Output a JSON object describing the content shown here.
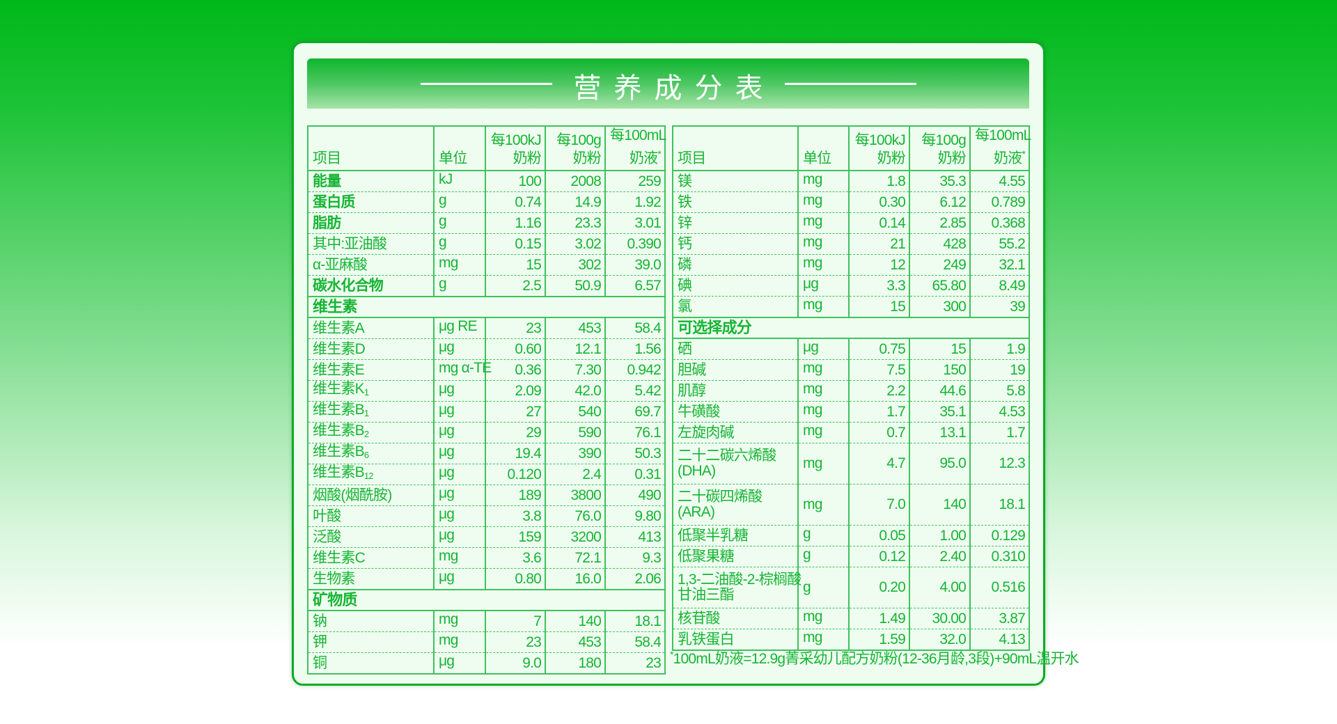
{
  "title": "营养成分表",
  "colors": {
    "accent": "#16b534",
    "border": "#3cc35a",
    "banner": "#0fb52e"
  },
  "headers": {
    "item": "项目",
    "unit": "单位",
    "per_kj": [
      "每100kJ",
      "奶粉"
    ],
    "per_g": [
      "每100g",
      "奶粉"
    ],
    "per_ml": [
      "每100mL",
      "奶液"
    ],
    "asterisk": "*"
  },
  "left": {
    "rows": [
      {
        "name": "能量",
        "bold": true,
        "unit": "kJ",
        "v": [
          "100",
          "2008",
          "259"
        ]
      },
      {
        "name": "蛋白质",
        "bold": true,
        "unit": "g",
        "v": [
          "0.74",
          "14.9",
          "1.92"
        ]
      },
      {
        "name": "脂肪",
        "bold": true,
        "unit": "g",
        "v": [
          "1.16",
          "23.3",
          "3.01"
        ]
      },
      {
        "name": "其中:亚油酸",
        "unit": "g",
        "v": [
          "0.15",
          "3.02",
          "0.390"
        ]
      },
      {
        "name": "α-亚麻酸",
        "unit": "mg",
        "v": [
          "15",
          "302",
          "39.0"
        ]
      },
      {
        "name": "碳水化合物",
        "bold": true,
        "unit": "g",
        "v": [
          "2.5",
          "50.9",
          "6.57"
        ]
      },
      {
        "section": "维生素"
      },
      {
        "name": "维生素A",
        "unit": "μg RE",
        "v": [
          "23",
          "453",
          "58.4"
        ]
      },
      {
        "name": "维生素D",
        "unit": "μg",
        "v": [
          "0.60",
          "12.1",
          "1.56"
        ]
      },
      {
        "name": "维生素E",
        "unit": "mg α-TE",
        "v": [
          "0.36",
          "7.30",
          "0.942"
        ]
      },
      {
        "name": "维生素K",
        "sub": "1",
        "unit": "μg",
        "v": [
          "2.09",
          "42.0",
          "5.42"
        ]
      },
      {
        "name": "维生素B",
        "sub": "1",
        "unit": "μg",
        "v": [
          "27",
          "540",
          "69.7"
        ]
      },
      {
        "name": "维生素B",
        "sub": "2",
        "unit": "μg",
        "v": [
          "29",
          "590",
          "76.1"
        ]
      },
      {
        "name": "维生素B",
        "sub": "6",
        "unit": "μg",
        "v": [
          "19.4",
          "390",
          "50.3"
        ]
      },
      {
        "name": "维生素B",
        "sub": "12",
        "unit": "μg",
        "v": [
          "0.120",
          "2.4",
          "0.31"
        ]
      },
      {
        "name": "烟酸(烟酰胺)",
        "unit": "μg",
        "v": [
          "189",
          "3800",
          "490"
        ]
      },
      {
        "name": "叶酸",
        "unit": "μg",
        "v": [
          "3.8",
          "76.0",
          "9.80"
        ]
      },
      {
        "name": "泛酸",
        "unit": "μg",
        "v": [
          "159",
          "3200",
          "413"
        ]
      },
      {
        "name": "维生素C",
        "unit": "mg",
        "v": [
          "3.6",
          "72.1",
          "9.3"
        ]
      },
      {
        "name": "生物素",
        "unit": "μg",
        "v": [
          "0.80",
          "16.0",
          "2.06"
        ]
      },
      {
        "section": "矿物质"
      },
      {
        "name": "钠",
        "unit": "mg",
        "v": [
          "7",
          "140",
          "18.1"
        ]
      },
      {
        "name": "钾",
        "unit": "mg",
        "v": [
          "23",
          "453",
          "58.4"
        ]
      },
      {
        "name": "铜",
        "unit": "μg",
        "v": [
          "9.0",
          "180",
          "23"
        ]
      }
    ]
  },
  "right": {
    "rows": [
      {
        "name": "镁",
        "unit": "mg",
        "v": [
          "1.8",
          "35.3",
          "4.55"
        ]
      },
      {
        "name": "铁",
        "unit": "mg",
        "v": [
          "0.30",
          "6.12",
          "0.789"
        ]
      },
      {
        "name": "锌",
        "unit": "mg",
        "v": [
          "0.14",
          "2.85",
          "0.368"
        ]
      },
      {
        "name": "钙",
        "unit": "mg",
        "v": [
          "21",
          "428",
          "55.2"
        ]
      },
      {
        "name": "磷",
        "unit": "mg",
        "v": [
          "12",
          "249",
          "32.1"
        ]
      },
      {
        "name": "碘",
        "unit": "μg",
        "v": [
          "3.3",
          "65.80",
          "8.49"
        ]
      },
      {
        "name": "氯",
        "unit": "mg",
        "v": [
          "15",
          "300",
          "39"
        ]
      },
      {
        "section": "可选择成分"
      },
      {
        "name": "硒",
        "unit": "μg",
        "v": [
          "0.75",
          "15",
          "1.9"
        ]
      },
      {
        "name": "胆碱",
        "unit": "mg",
        "v": [
          "7.5",
          "150",
          "19"
        ]
      },
      {
        "name": "肌醇",
        "unit": "mg",
        "v": [
          "2.2",
          "44.6",
          "5.8"
        ]
      },
      {
        "name": "牛磺酸",
        "unit": "mg",
        "v": [
          "1.7",
          "35.1",
          "4.53"
        ]
      },
      {
        "name": "左旋肉碱",
        "unit": "mg",
        "v": [
          "0.7",
          "13.1",
          "1.7"
        ]
      },
      {
        "name": "二十二碳六烯酸",
        "name2": "(DHA)",
        "unit": "mg",
        "v": [
          "4.7",
          "95.0",
          "12.3"
        ]
      },
      {
        "name": "二十碳四烯酸",
        "name2": "(ARA)",
        "unit": "mg",
        "v": [
          "7.0",
          "140",
          "18.1"
        ]
      },
      {
        "name": "低聚半乳糖",
        "unit": "g",
        "v": [
          "0.05",
          "1.00",
          "0.129"
        ]
      },
      {
        "name": "低聚果糖",
        "unit": "g",
        "v": [
          "0.12",
          "2.40",
          "0.310"
        ]
      },
      {
        "name": "1,3-二油酸-2-棕榈酸",
        "name2": "甘油三酯",
        "unit": "g",
        "v": [
          "0.20",
          "4.00",
          "0.516"
        ]
      },
      {
        "name": "核苷酸",
        "unit": "mg",
        "v": [
          "1.49",
          "30.00",
          "3.87"
        ]
      },
      {
        "name": "乳铁蛋白",
        "unit": "mg",
        "v": [
          "1.59",
          "32.0",
          "4.13"
        ]
      }
    ]
  },
  "footnote": {
    "mark": "*",
    "text": "100mL奶液=12.9g菁采幼儿配方奶粉(12-36月龄,3段)+90mL温开水"
  }
}
